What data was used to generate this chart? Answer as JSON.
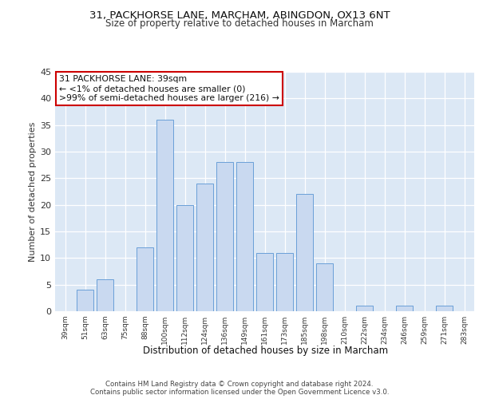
{
  "title1": "31, PACKHORSE LANE, MARCHAM, ABINGDON, OX13 6NT",
  "title2": "Size of property relative to detached houses in Marcham",
  "xlabel": "Distribution of detached houses by size in Marcham",
  "ylabel": "Number of detached properties",
  "categories": [
    "39sqm",
    "51sqm",
    "63sqm",
    "75sqm",
    "88sqm",
    "100sqm",
    "112sqm",
    "124sqm",
    "136sqm",
    "149sqm",
    "161sqm",
    "173sqm",
    "185sqm",
    "198sqm",
    "210sqm",
    "222sqm",
    "234sqm",
    "246sqm",
    "259sqm",
    "271sqm",
    "283sqm"
  ],
  "values": [
    0,
    4,
    6,
    0,
    12,
    36,
    20,
    24,
    28,
    28,
    11,
    11,
    22,
    9,
    0,
    1,
    0,
    1,
    0,
    1,
    0
  ],
  "bar_color": "#c9d9f0",
  "bar_edge_color": "#6a9fd8",
  "annotation_text": "31 PACKHORSE LANE: 39sqm\n← <1% of detached houses are smaller (0)\n>99% of semi-detached houses are larger (216) →",
  "annotation_box_color": "#ffffff",
  "annotation_box_edge_color": "#cc0000",
  "ylim": [
    0,
    45
  ],
  "yticks": [
    0,
    5,
    10,
    15,
    20,
    25,
    30,
    35,
    40,
    45
  ],
  "background_color": "#dce8f5",
  "fig_background": "#ffffff",
  "footer1": "Contains HM Land Registry data © Crown copyright and database right 2024.",
  "footer2": "Contains public sector information licensed under the Open Government Licence v3.0."
}
